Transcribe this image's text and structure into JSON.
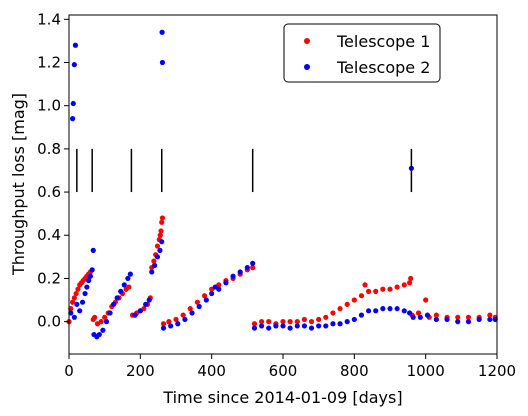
{
  "chart_data": {
    "type": "scatter",
    "title": "",
    "xlabel": "Time since 2014-01-09  [days]",
    "ylabel": "Throughput loss  [mag]",
    "xlim": [
      0,
      1200
    ],
    "ylim": [
      -0.15,
      1.42
    ],
    "x_ticks": [
      0,
      200,
      400,
      600,
      800,
      1000,
      1200
    ],
    "x_tick_labels": [
      "0",
      "200",
      "400",
      "600",
      "800",
      "1000",
      "1200"
    ],
    "y_ticks": [
      0.0,
      0.2,
      0.4,
      0.6,
      0.8,
      1.0,
      1.2,
      1.4
    ],
    "y_tick_labels": [
      "0.0",
      "0.2",
      "0.4",
      "0.6",
      "0.8",
      "1.0",
      "1.2",
      "1.4"
    ],
    "grid": false,
    "legend_position": "top-right",
    "series": [
      {
        "name": "Telescope 1",
        "color": "#ff0000",
        "points": [
          [
            0,
            0.0
          ],
          [
            5,
            0.06
          ],
          [
            10,
            0.09
          ],
          [
            15,
            0.11
          ],
          [
            20,
            0.13
          ],
          [
            25,
            0.15
          ],
          [
            30,
            0.17
          ],
          [
            35,
            0.18
          ],
          [
            40,
            0.19
          ],
          [
            45,
            0.2
          ],
          [
            50,
            0.21
          ],
          [
            55,
            0.22
          ],
          [
            60,
            0.23
          ],
          [
            68,
            0.01
          ],
          [
            72,
            0.02
          ],
          [
            80,
            -0.01
          ],
          [
            90,
            0.0
          ],
          [
            100,
            0.02
          ],
          [
            110,
            0.04
          ],
          [
            120,
            0.07
          ],
          [
            130,
            0.09
          ],
          [
            140,
            0.11
          ],
          [
            150,
            0.13
          ],
          [
            160,
            0.15
          ],
          [
            168,
            0.16
          ],
          [
            178,
            0.03
          ],
          [
            190,
            0.04
          ],
          [
            200,
            0.05
          ],
          [
            210,
            0.06
          ],
          [
            220,
            0.08
          ],
          [
            228,
            0.11
          ],
          [
            232,
            0.25
          ],
          [
            238,
            0.28
          ],
          [
            243,
            0.31
          ],
          [
            248,
            0.35
          ],
          [
            253,
            0.38
          ],
          [
            256,
            0.4
          ],
          [
            258,
            0.42
          ],
          [
            260,
            0.46
          ],
          [
            262,
            0.48
          ],
          [
            265,
            -0.01
          ],
          [
            280,
            0.0
          ],
          [
            300,
            0.01
          ],
          [
            320,
            0.03
          ],
          [
            340,
            0.06
          ],
          [
            360,
            0.09
          ],
          [
            380,
            0.12
          ],
          [
            400,
            0.15
          ],
          [
            420,
            0.17
          ],
          [
            440,
            0.19
          ],
          [
            460,
            0.2
          ],
          [
            480,
            0.22
          ],
          [
            500,
            0.24
          ],
          [
            515,
            0.25
          ],
          [
            520,
            -0.01
          ],
          [
            540,
            0.0
          ],
          [
            560,
            0.0
          ],
          [
            580,
            -0.01
          ],
          [
            600,
            0.0
          ],
          [
            620,
            0.0
          ],
          [
            640,
            0.0
          ],
          [
            660,
            0.01
          ],
          [
            680,
            0.0
          ],
          [
            700,
            0.01
          ],
          [
            720,
            0.02
          ],
          [
            740,
            0.04
          ],
          [
            760,
            0.06
          ],
          [
            780,
            0.08
          ],
          [
            800,
            0.1
          ],
          [
            820,
            0.12
          ],
          [
            830,
            0.17
          ],
          [
            840,
            0.14
          ],
          [
            860,
            0.14
          ],
          [
            880,
            0.15
          ],
          [
            900,
            0.15
          ],
          [
            920,
            0.16
          ],
          [
            940,
            0.17
          ],
          [
            955,
            0.18
          ],
          [
            958,
            0.2
          ],
          [
            962,
            0.03
          ],
          [
            980,
            0.04
          ],
          [
            1000,
            0.1
          ],
          [
            1010,
            0.02
          ],
          [
            1030,
            0.03
          ],
          [
            1060,
            0.02
          ],
          [
            1090,
            0.02
          ],
          [
            1120,
            0.02
          ],
          [
            1150,
            0.02
          ],
          [
            1180,
            0.03
          ],
          [
            1195,
            0.02
          ]
        ]
      },
      {
        "name": "Telescope 2",
        "color": "#0000ff",
        "points": [
          [
            10,
            0.94
          ],
          [
            12,
            1.01
          ],
          [
            15,
            1.19
          ],
          [
            18,
            1.28
          ],
          [
            5,
            0.04
          ],
          [
            15,
            0.02
          ],
          [
            22,
            0.08
          ],
          [
            30,
            0.05
          ],
          [
            38,
            0.09
          ],
          [
            45,
            0.13
          ],
          [
            50,
            0.16
          ],
          [
            55,
            0.19
          ],
          [
            60,
            0.21
          ],
          [
            65,
            0.24
          ],
          [
            68,
            0.33
          ],
          [
            70,
            -0.06
          ],
          [
            78,
            -0.07
          ],
          [
            85,
            -0.06
          ],
          [
            95,
            -0.04
          ],
          [
            105,
            0.0
          ],
          [
            115,
            0.04
          ],
          [
            125,
            0.08
          ],
          [
            135,
            0.11
          ],
          [
            145,
            0.14
          ],
          [
            155,
            0.17
          ],
          [
            165,
            0.2
          ],
          [
            172,
            0.22
          ],
          [
            185,
            0.03
          ],
          [
            200,
            0.05
          ],
          [
            215,
            0.08
          ],
          [
            225,
            0.1
          ],
          [
            232,
            0.23
          ],
          [
            240,
            0.26
          ],
          [
            248,
            0.3
          ],
          [
            255,
            0.33
          ],
          [
            260,
            0.37
          ],
          [
            261,
            1.34
          ],
          [
            262,
            1.2
          ],
          [
            265,
            -0.03
          ],
          [
            285,
            -0.02
          ],
          [
            305,
            -0.01
          ],
          [
            325,
            0.01
          ],
          [
            345,
            0.04
          ],
          [
            365,
            0.07
          ],
          [
            385,
            0.1
          ],
          [
            400,
            0.13
          ],
          [
            410,
            0.16
          ],
          [
            420,
            0.15
          ],
          [
            440,
            0.18
          ],
          [
            460,
            0.21
          ],
          [
            480,
            0.23
          ],
          [
            500,
            0.25
          ],
          [
            515,
            0.27
          ],
          [
            520,
            -0.03
          ],
          [
            540,
            -0.02
          ],
          [
            560,
            -0.03
          ],
          [
            580,
            -0.02
          ],
          [
            600,
            -0.02
          ],
          [
            620,
            -0.03
          ],
          [
            640,
            -0.02
          ],
          [
            660,
            -0.02
          ],
          [
            680,
            -0.03
          ],
          [
            700,
            -0.02
          ],
          [
            720,
            -0.02
          ],
          [
            740,
            -0.01
          ],
          [
            760,
            -0.01
          ],
          [
            780,
            0.0
          ],
          [
            800,
            0.01
          ],
          [
            820,
            0.03
          ],
          [
            840,
            0.05
          ],
          [
            860,
            0.05
          ],
          [
            880,
            0.06
          ],
          [
            900,
            0.06
          ],
          [
            920,
            0.06
          ],
          [
            940,
            0.05
          ],
          [
            955,
            0.04
          ],
          [
            960,
            0.71
          ],
          [
            965,
            0.02
          ],
          [
            985,
            0.02
          ],
          [
            1005,
            0.03
          ],
          [
            1030,
            0.01
          ],
          [
            1060,
            0.01
          ],
          [
            1090,
            0.0
          ],
          [
            1120,
            0.0
          ],
          [
            1150,
            0.01
          ],
          [
            1180,
            0.01
          ],
          [
            1195,
            0.01
          ]
        ]
      }
    ],
    "annotations": {
      "vertical_markers": [
        {
          "x": 22,
          "y0": 0.6,
          "y1": 0.8
        },
        {
          "x": 65,
          "y0": 0.6,
          "y1": 0.8
        },
        {
          "x": 175,
          "y0": 0.6,
          "y1": 0.8
        },
        {
          "x": 260,
          "y0": 0.6,
          "y1": 0.8
        },
        {
          "x": 515,
          "y0": 0.6,
          "y1": 0.8
        },
        {
          "x": 960,
          "y0": 0.6,
          "y1": 0.8
        }
      ]
    }
  }
}
